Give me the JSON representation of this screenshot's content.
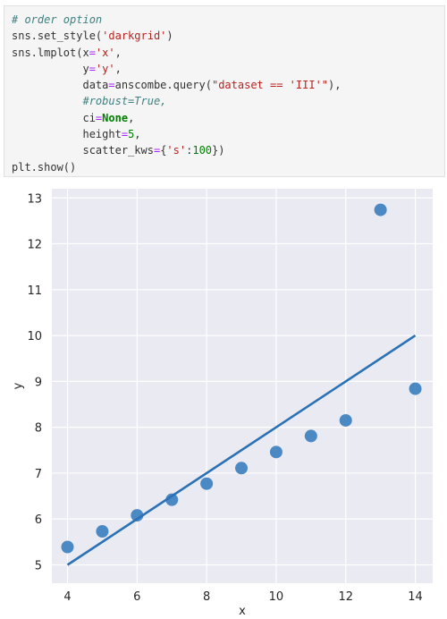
{
  "code": {
    "lines": [
      [
        {
          "t": "# order option",
          "c": "c-comment"
        }
      ],
      [
        {
          "t": "sns.set_style(",
          "c": ""
        },
        {
          "t": "'darkgrid'",
          "c": "c-str"
        },
        {
          "t": ")",
          "c": ""
        }
      ],
      [
        {
          "t": "sns.lmplot(x",
          "c": ""
        },
        {
          "t": "=",
          "c": "c-op"
        },
        {
          "t": "'x'",
          "c": "c-str"
        },
        {
          "t": ",",
          "c": ""
        }
      ],
      [
        {
          "t": "           y",
          "c": ""
        },
        {
          "t": "=",
          "c": "c-op"
        },
        {
          "t": "'y'",
          "c": "c-str"
        },
        {
          "t": ",",
          "c": ""
        }
      ],
      [
        {
          "t": "           data",
          "c": ""
        },
        {
          "t": "=",
          "c": "c-op"
        },
        {
          "t": "anscombe.query(",
          "c": ""
        },
        {
          "t": "\"dataset == 'III'\"",
          "c": "c-str"
        },
        {
          "t": "),",
          "c": ""
        }
      ],
      [
        {
          "t": "           #robust=True,",
          "c": "c-comment"
        }
      ],
      [
        {
          "t": "           ci",
          "c": ""
        },
        {
          "t": "=",
          "c": "c-op"
        },
        {
          "t": "None",
          "c": "c-kw"
        },
        {
          "t": ",",
          "c": ""
        }
      ],
      [
        {
          "t": "           height",
          "c": ""
        },
        {
          "t": "=",
          "c": "c-op"
        },
        {
          "t": "5",
          "c": "c-num"
        },
        {
          "t": ",",
          "c": ""
        }
      ],
      [
        {
          "t": "           scatter_kws",
          "c": ""
        },
        {
          "t": "=",
          "c": "c-op"
        },
        {
          "t": "{",
          "c": ""
        },
        {
          "t": "'s'",
          "c": "c-str"
        },
        {
          "t": ":",
          "c": ""
        },
        {
          "t": "100",
          "c": "c-num"
        },
        {
          "t": "})",
          "c": ""
        }
      ],
      [
        {
          "t": "plt.show()",
          "c": ""
        }
      ]
    ]
  },
  "chart_data": {
    "type": "scatter",
    "xlabel": "x",
    "ylabel": "y",
    "xlim": [
      3.55,
      14.5
    ],
    "ylim": [
      4.6,
      13.2
    ],
    "xticks": [
      4,
      6,
      8,
      10,
      12,
      14
    ],
    "yticks": [
      5,
      6,
      7,
      8,
      9,
      10,
      11,
      12,
      13
    ],
    "grid": true,
    "background": "#eaeaf2",
    "point_color": "#3a7ebf",
    "line_color": "#2a72b5",
    "points": [
      {
        "x": 4,
        "y": 5.39
      },
      {
        "x": 5,
        "y": 5.73
      },
      {
        "x": 6,
        "y": 6.08
      },
      {
        "x": 7,
        "y": 6.42
      },
      {
        "x": 8,
        "y": 6.77
      },
      {
        "x": 9,
        "y": 7.11
      },
      {
        "x": 10,
        "y": 7.46
      },
      {
        "x": 11,
        "y": 7.81
      },
      {
        "x": 12,
        "y": 8.15
      },
      {
        "x": 13,
        "y": 12.74
      },
      {
        "x": 14,
        "y": 8.84
      }
    ],
    "regression_line": {
      "x": [
        4,
        14
      ],
      "y": [
        5.0,
        10.0
      ]
    }
  }
}
